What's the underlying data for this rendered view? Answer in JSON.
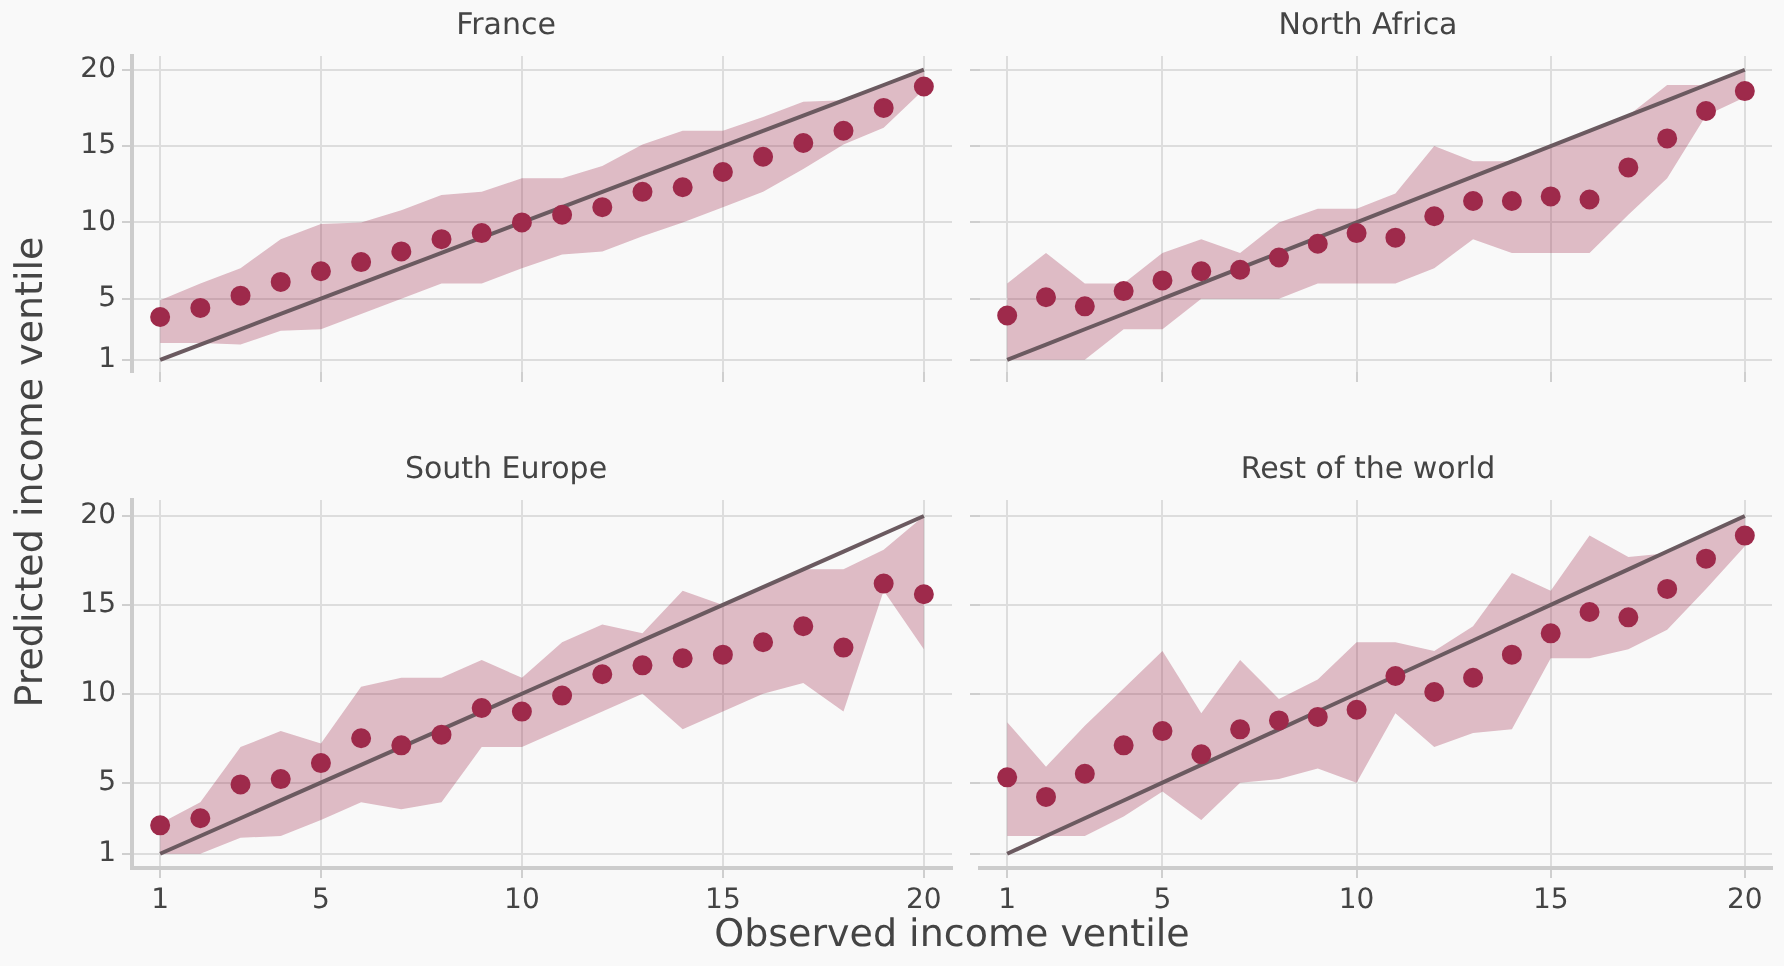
{
  "chart_data": [
    {
      "type": "scatter",
      "title": "France",
      "ylabel": "Predicted income ventile",
      "x": [
        1,
        2,
        3,
        4,
        5,
        6,
        7,
        8,
        9,
        10,
        11,
        12,
        13,
        14,
        15,
        16,
        17,
        18,
        19,
        20
      ],
      "xlim": [
        0.3,
        20.7
      ],
      "ylim": [
        0.2,
        20.9
      ],
      "xticks": [
        1,
        5,
        10,
        15,
        20
      ],
      "yticks": [
        1,
        5,
        10,
        15,
        20
      ],
      "grid": true,
      "tick_labels": "y",
      "series": [
        {
          "type": "scatter",
          "marker": "circle",
          "color": "#9e2a4b",
          "values": [
            3.8,
            4.4,
            5.2,
            6.1,
            6.8,
            7.4,
            8.1,
            8.9,
            9.3,
            10,
            10.5,
            11,
            12,
            12.3,
            13.3,
            14.3,
            15.2,
            16,
            17.5,
            18.9
          ],
          "lower": [
            2.1,
            2.1,
            2,
            2.9,
            3,
            4,
            5,
            6,
            6,
            7,
            7.9,
            8.1,
            9.1,
            10,
            11,
            12,
            13.5,
            15.1,
            16.2,
            18.7
          ],
          "upper": [
            4.9,
            6,
            7,
            8.9,
            9.9,
            10,
            10.8,
            11.8,
            12,
            12.9,
            12.9,
            13.7,
            15.1,
            16,
            16,
            16.9,
            17.9,
            18,
            19,
            20
          ]
        },
        {
          "type": "line",
          "color": "#6b5a60",
          "line_style": "solid",
          "values": [
            1,
            2,
            3,
            4,
            5,
            6,
            7,
            8,
            9,
            10,
            11,
            12,
            13,
            14,
            15,
            16,
            17,
            18,
            19,
            20
          ]
        }
      ]
    },
    {
      "type": "scatter",
      "title": "North Africa",
      "x": [
        1,
        2,
        3,
        4,
        5,
        6,
        7,
        8,
        9,
        10,
        11,
        12,
        13,
        14,
        15,
        16,
        17,
        18,
        19,
        20
      ],
      "xlim": [
        0.3,
        20.7
      ],
      "ylim": [
        0.2,
        20.9
      ],
      "xticks": [
        1,
        5,
        10,
        15,
        20
      ],
      "yticks": [
        1,
        5,
        10,
        15,
        20
      ],
      "grid": true,
      "tick_labels": false,
      "series": [
        {
          "type": "scatter",
          "marker": "circle",
          "color": "#9e2a4b",
          "values": [
            3.9,
            5.1,
            4.5,
            5.5,
            6.2,
            6.8,
            6.9,
            7.7,
            8.6,
            9.3,
            9,
            10.4,
            11.4,
            11.4,
            11.7,
            11.5,
            13.6,
            15.5,
            17.3,
            18.6
          ],
          "lower": [
            1,
            1,
            1,
            3,
            3,
            5,
            5,
            5,
            6,
            6,
            6,
            7,
            8.9,
            8,
            8,
            8,
            10.5,
            12.9,
            17,
            18.2
          ],
          "upper": [
            6,
            8,
            6,
            6,
            8,
            8.9,
            8,
            10,
            10.9,
            10.9,
            11.9,
            15,
            14,
            14,
            15,
            16,
            17,
            19,
            19,
            20
          ]
        },
        {
          "type": "line",
          "color": "#6b5a60",
          "line_style": "solid",
          "values": [
            1,
            2,
            3,
            4,
            5,
            6,
            7,
            8,
            9,
            10,
            11,
            12,
            13,
            14,
            15,
            16,
            17,
            18,
            19,
            20
          ]
        }
      ]
    },
    {
      "type": "scatter",
      "title": "South Europe",
      "xlabel": "Observed income ventile",
      "x": [
        1,
        2,
        3,
        4,
        5,
        6,
        7,
        8,
        9,
        10,
        11,
        12,
        13,
        14,
        15,
        16,
        17,
        18,
        19,
        20
      ],
      "xlim": [
        0.3,
        20.7
      ],
      "ylim": [
        0.2,
        20.9
      ],
      "xticks": [
        1,
        5,
        10,
        15,
        20
      ],
      "yticks": [
        1,
        5,
        10,
        15,
        20
      ],
      "grid": true,
      "series": [
        {
          "type": "scatter",
          "marker": "circle",
          "color": "#9e2a4b",
          "values": [
            2.6,
            3,
            4.9,
            5.2,
            6.1,
            7.5,
            7.1,
            7.7,
            9.2,
            9,
            9.9,
            11.1,
            11.6,
            12,
            12.2,
            12.9,
            13.8,
            12.6,
            16.2,
            15.6
          ],
          "lower": [
            1,
            1,
            1.9,
            2,
            2.9,
            3.9,
            3.5,
            3.9,
            7,
            7,
            8,
            9,
            10,
            8,
            9,
            10,
            10.6,
            9,
            15.8,
            12.5
          ],
          "upper": [
            2.7,
            3.9,
            7,
            7.9,
            7.2,
            10.4,
            10.9,
            10.9,
            11.9,
            10.9,
            12.9,
            13.9,
            13.4,
            15.8,
            15,
            16,
            17,
            17,
            18.1,
            20
          ]
        },
        {
          "type": "line",
          "color": "#6b5a60",
          "line_style": "solid",
          "values": [
            1,
            2,
            3,
            4,
            5,
            6,
            7,
            8,
            9,
            10,
            11,
            12,
            13,
            14,
            15,
            16,
            17,
            18,
            19,
            20
          ]
        }
      ]
    },
    {
      "type": "scatter",
      "title": "Rest of the world",
      "x": [
        1,
        2,
        3,
        4,
        5,
        6,
        7,
        8,
        9,
        10,
        11,
        12,
        13,
        14,
        15,
        16,
        17,
        18,
        19,
        20
      ],
      "xlim": [
        0.3,
        20.7
      ],
      "ylim": [
        0.2,
        20.9
      ],
      "xticks": [
        1,
        5,
        10,
        15,
        20
      ],
      "yticks": [
        1,
        5,
        10,
        15,
        20
      ],
      "grid": true,
      "tick_labels": "x",
      "series": [
        {
          "type": "scatter",
          "marker": "circle",
          "color": "#9e2a4b",
          "values": [
            5.3,
            4.2,
            5.5,
            7.1,
            7.9,
            6.6,
            8,
            8.5,
            8.7,
            9.1,
            11,
            10.1,
            10.9,
            12.2,
            13.4,
            14.6,
            14.3,
            15.9,
            17.6,
            18.9
          ],
          "lower": [
            2,
            2,
            2,
            3.1,
            4.5,
            2.9,
            5,
            5.2,
            5.8,
            5,
            8.9,
            7,
            7.8,
            8,
            12,
            12,
            12.5,
            13.6,
            15.9,
            18.3
          ],
          "upper": [
            8.4,
            5.9,
            8.2,
            10.3,
            12.4,
            8.9,
            11.9,
            9.7,
            10.8,
            12.9,
            12.9,
            12.4,
            13.8,
            16.8,
            15.8,
            18.9,
            17.7,
            17.9,
            18.9,
            20
          ]
        },
        {
          "type": "line",
          "color": "#6b5a60",
          "line_style": "solid",
          "values": [
            1,
            2,
            3,
            4,
            5,
            6,
            7,
            8,
            9,
            10,
            11,
            12,
            13,
            14,
            15,
            16,
            17,
            18,
            19,
            20
          ]
        }
      ]
    }
  ]
}
